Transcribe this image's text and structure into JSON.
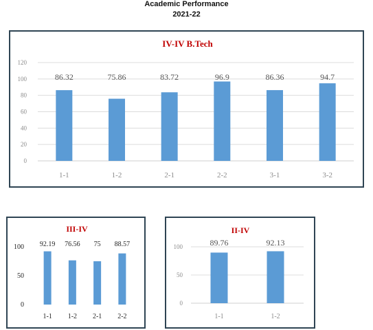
{
  "header": {
    "line1": "Academic Performance",
    "line2": "2021-22"
  },
  "chart_data": [
    {
      "type": "bar",
      "title": "IV-IV B.Tech",
      "categories": [
        "1-1",
        "1-2",
        "2-1",
        "2-2",
        "3-1",
        "3-2"
      ],
      "values": [
        86.32,
        75.86,
        83.72,
        96.9,
        86.36,
        94.7
      ],
      "ylim": [
        0,
        120
      ],
      "yticks": [
        0,
        20,
        40,
        60,
        80,
        100,
        120
      ],
      "grid": true,
      "bar_color": "#5b9bd5"
    },
    {
      "type": "bar",
      "title": "III-IV",
      "categories": [
        "1-1",
        "1-2",
        "2-1",
        "2-2"
      ],
      "values": [
        92.19,
        76.56,
        75,
        88.57
      ],
      "ylim": [
        0,
        100
      ],
      "yticks": [
        0,
        50,
        100
      ],
      "grid": false,
      "bar_color": "#5b9bd5"
    },
    {
      "type": "bar",
      "title": "II-IV",
      "categories": [
        "1-1",
        "1-2"
      ],
      "values": [
        89.76,
        92.13
      ],
      "ylim": [
        0,
        100
      ],
      "yticks": [
        0,
        50,
        100
      ],
      "grid": true,
      "bar_color": "#5b9bd5"
    }
  ]
}
